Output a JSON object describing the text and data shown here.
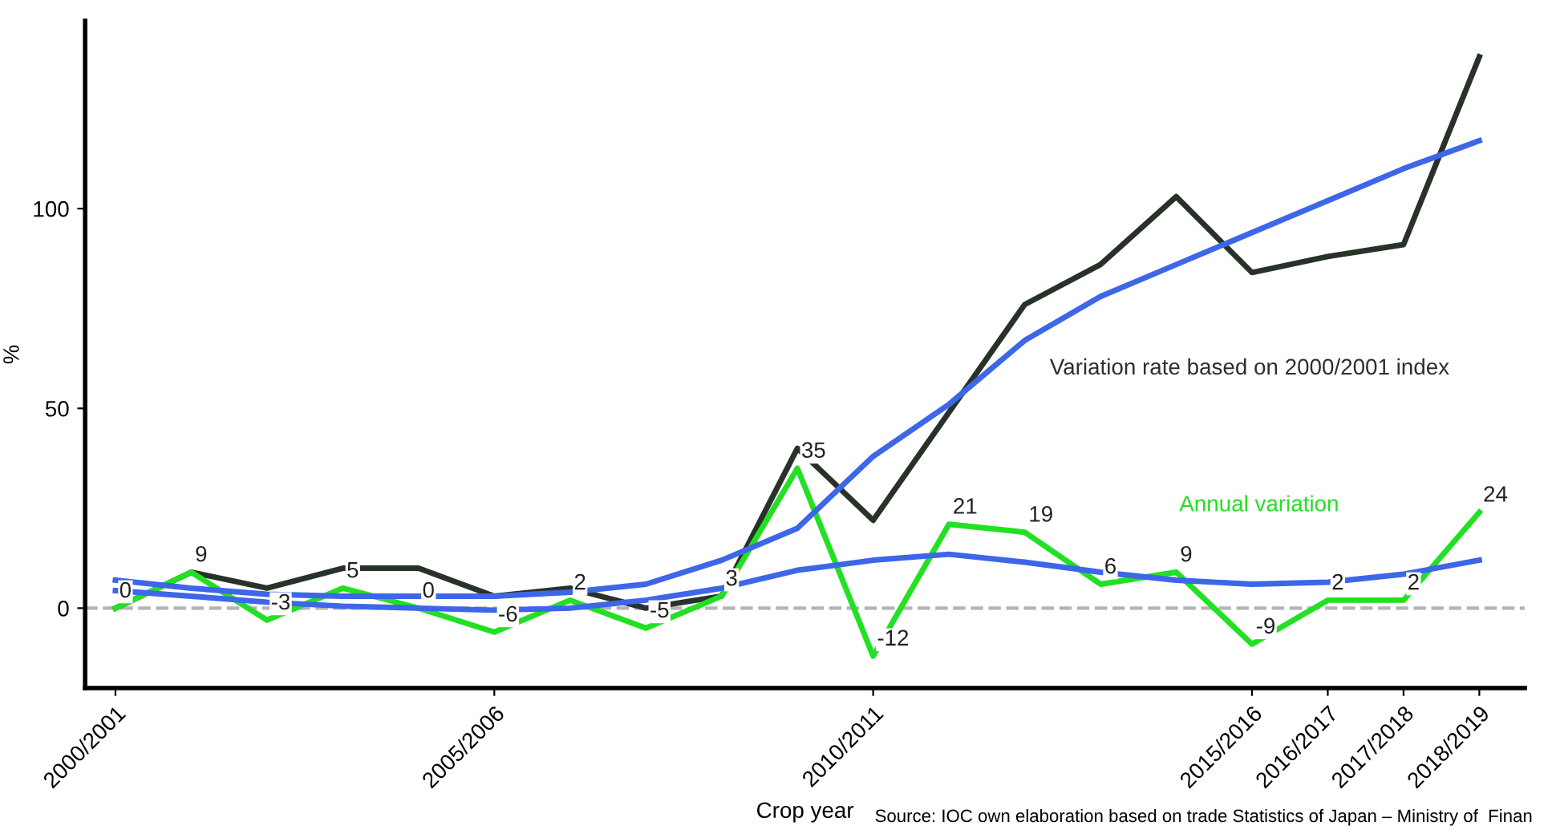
{
  "chart_data": {
    "type": "line",
    "xlabel": "Crop year",
    "ylabel": "%",
    "categories": [
      "2000/2001",
      null,
      null,
      null,
      null,
      "2005/2006",
      null,
      null,
      null,
      null,
      "2010/2011",
      null,
      null,
      null,
      null,
      "2015/2016",
      "2016/2017",
      "2017/2018",
      "2018/2019"
    ],
    "series": [
      {
        "name": "Variation rate based on 2000/2001 index",
        "color": "#283228",
        "values": [
          0,
          9,
          5,
          10,
          10,
          3,
          5,
          0,
          3,
          40,
          22,
          49,
          76,
          86,
          103,
          84,
          88,
          91,
          138
        ]
      },
      {
        "name": "Annual variation",
        "color": "#22e022",
        "values": [
          0,
          9,
          -3,
          5,
          0,
          -6,
          2,
          -5,
          3,
          35,
          -12,
          21,
          19,
          6,
          9,
          -9,
          2,
          2,
          24
        ],
        "value_labels": [
          "0",
          "9",
          "-3",
          "5",
          "0",
          "-6",
          "2",
          "-5",
          "3",
          "35",
          "-12",
          "21",
          "19",
          "6",
          "9",
          "-9",
          "2",
          "2",
          "24"
        ]
      },
      {
        "color": "#3d66e8",
        "values": [
          7,
          5,
          3.5,
          3,
          3,
          3,
          4,
          6,
          12,
          20,
          38,
          51,
          67,
          78,
          86,
          94,
          102,
          110,
          117
        ]
      },
      {
        "color": "#3d66e8",
        "values": [
          4.4,
          3,
          1.5,
          0.5,
          0,
          -0.5,
          0,
          2,
          5,
          9.5,
          12,
          13.5,
          11.5,
          9,
          7,
          6,
          6.5,
          8.5,
          12
        ]
      }
    ],
    "ylim": [
      -20,
      147
    ],
    "yticks": [
      0,
      50,
      100
    ],
    "grid": false,
    "legend": false,
    "ref_lines": [
      {
        "axis": "y",
        "value": 0,
        "color": "#b4b4b4",
        "line_style": "dashed"
      }
    ],
    "annotations": [
      "Source: IOC own elaboration based on trade Statistics of Japan – Ministry of  Finan"
    ]
  }
}
